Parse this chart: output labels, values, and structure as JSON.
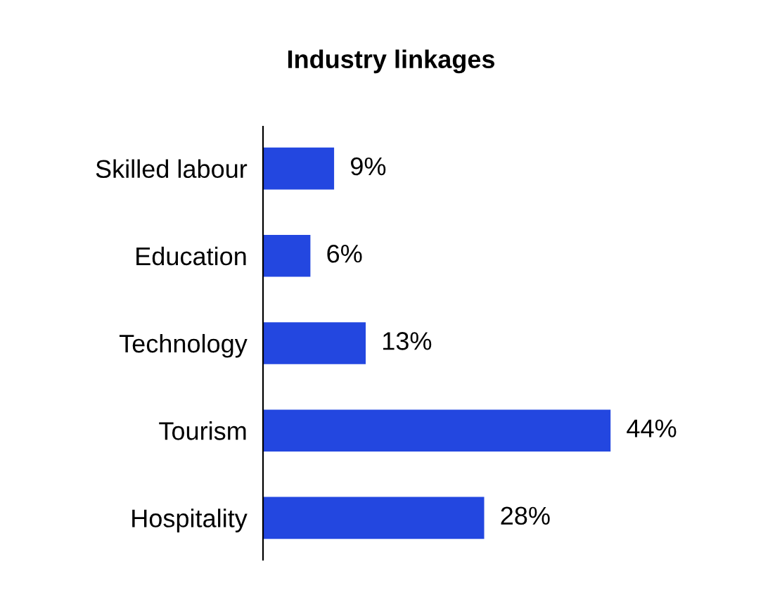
{
  "chart_data": {
    "type": "bar",
    "orientation": "horizontal",
    "title": "Industry linkages",
    "categories": [
      "Skilled labour",
      "Education",
      "Technology",
      "Tourism",
      "Hospitality"
    ],
    "values": [
      9,
      6,
      13,
      44,
      28
    ],
    "value_labels": [
      "9%",
      "6%",
      "13%",
      "44%",
      "28%"
    ],
    "color": "#2347e0",
    "grid": false,
    "legend": false
  }
}
